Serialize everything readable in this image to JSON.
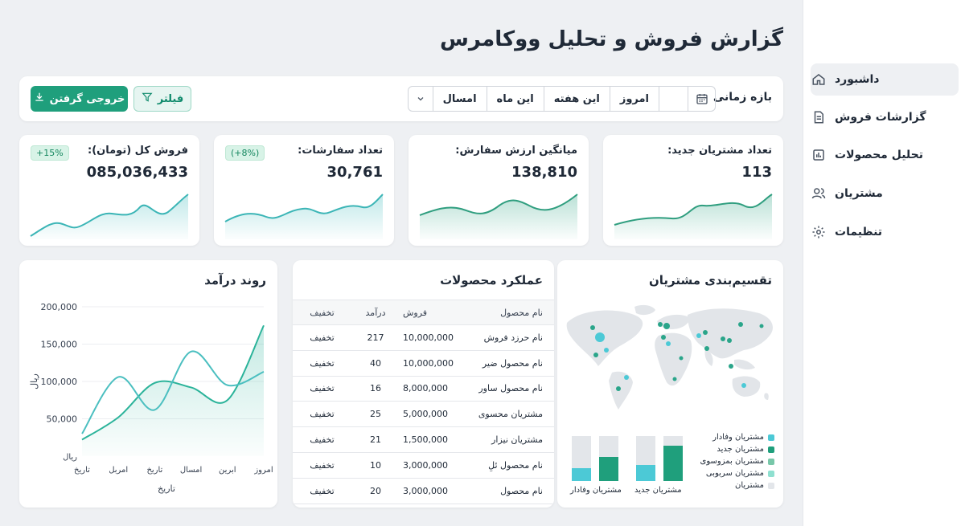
{
  "title": "گزارش فروش و تحلیل ووکامرس",
  "sidebar": {
    "items": [
      {
        "label": "داشبورد",
        "icon": "home-icon"
      },
      {
        "label": "گزارشات فروش",
        "icon": "document-icon"
      },
      {
        "label": "تحلیل محصولات",
        "icon": "bar-chart-icon"
      },
      {
        "label": "مشتریان",
        "icon": "users-icon"
      },
      {
        "label": "تنظیمات",
        "icon": "gear-icon"
      }
    ]
  },
  "toolbar": {
    "range_label": "بازه زمانی",
    "ranges": [
      "امروز",
      "این هفته",
      "این ماه",
      "امسال"
    ],
    "filter_label": "فیلتر",
    "export_label": "خروجی گرفتن"
  },
  "kpis": [
    {
      "title": "تعداد مشتریان جدید:",
      "value": "113",
      "badge": ""
    },
    {
      "title": "میانگین ارزش سفارش:",
      "value": "138,810",
      "badge": ""
    },
    {
      "title": "تعداد سفارشات:",
      "value": "30,761",
      "badge": "(+8%)"
    },
    {
      "title": "فروش کل (تومان):",
      "value": "085,036,433",
      "badge": "+15%"
    }
  ],
  "performance": {
    "title": "عملکرد محصولات",
    "headers": [
      "نام محصول",
      "فروش",
      "درآمد",
      "تخفیف"
    ],
    "rows": [
      [
        "نام حرزد فروش",
        "10,000,000",
        "217",
        "تخفیف"
      ],
      [
        "نام محصول ضیر",
        "10,000,000",
        "40",
        "تخفیف"
      ],
      [
        "نام محصول ساور",
        "8,000,000",
        "16",
        "تخفیف"
      ],
      [
        "مشتریان محسوی",
        "5,000,000",
        "25",
        "تخفیف"
      ],
      [
        "مشتریان نیزار",
        "1,500,000",
        "21",
        "تخفیف"
      ],
      [
        "نام محصول ئلِ",
        "3,000,000",
        "10",
        "تخفیف"
      ],
      [
        "نام محصول",
        "3,000,000",
        "20",
        "تخفیف"
      ]
    ]
  },
  "segmentation": {
    "title": "تقسیم‌بندی مشتریان",
    "legend": [
      {
        "label": "مشتریان وفادار",
        "color": "#4cc9d6"
      },
      {
        "label": "مشتریان جدید",
        "color": "#1f9f7c"
      },
      {
        "label": "مشتریان بمزوسوی",
        "color": "#78c7a9"
      },
      {
        "label": "مشتریان سربوبی",
        "color": "#8fe0d0"
      },
      {
        "label": "مشتریان",
        "color": "#e3e6ea"
      }
    ],
    "bar_labels": [
      "مشتریان جدید",
      "مشتریان وفادار"
    ]
  },
  "chart_data": {
    "type": "line",
    "title": "روند درآمد",
    "xlabel": "تاریخ",
    "ylabel": "ریال",
    "y_unit_label": "ریال",
    "categories": [
      "تاریخ",
      "امربل",
      "تاریخ",
      "امسال",
      "ابرین",
      "امروز"
    ],
    "ylim": [
      0,
      200000
    ],
    "yticks": [
      "200,000",
      "150,000",
      "100,000",
      "50,000"
    ],
    "series": [
      {
        "values": [
          22000,
          52000,
          98000,
          92000,
          75000,
          175000
        ],
        "color": "#2bb39a"
      },
      {
        "values": [
          30000,
          106000,
          62000,
          140000,
          95000,
          113000
        ],
        "color": "#4bbfc0"
      }
    ]
  }
}
